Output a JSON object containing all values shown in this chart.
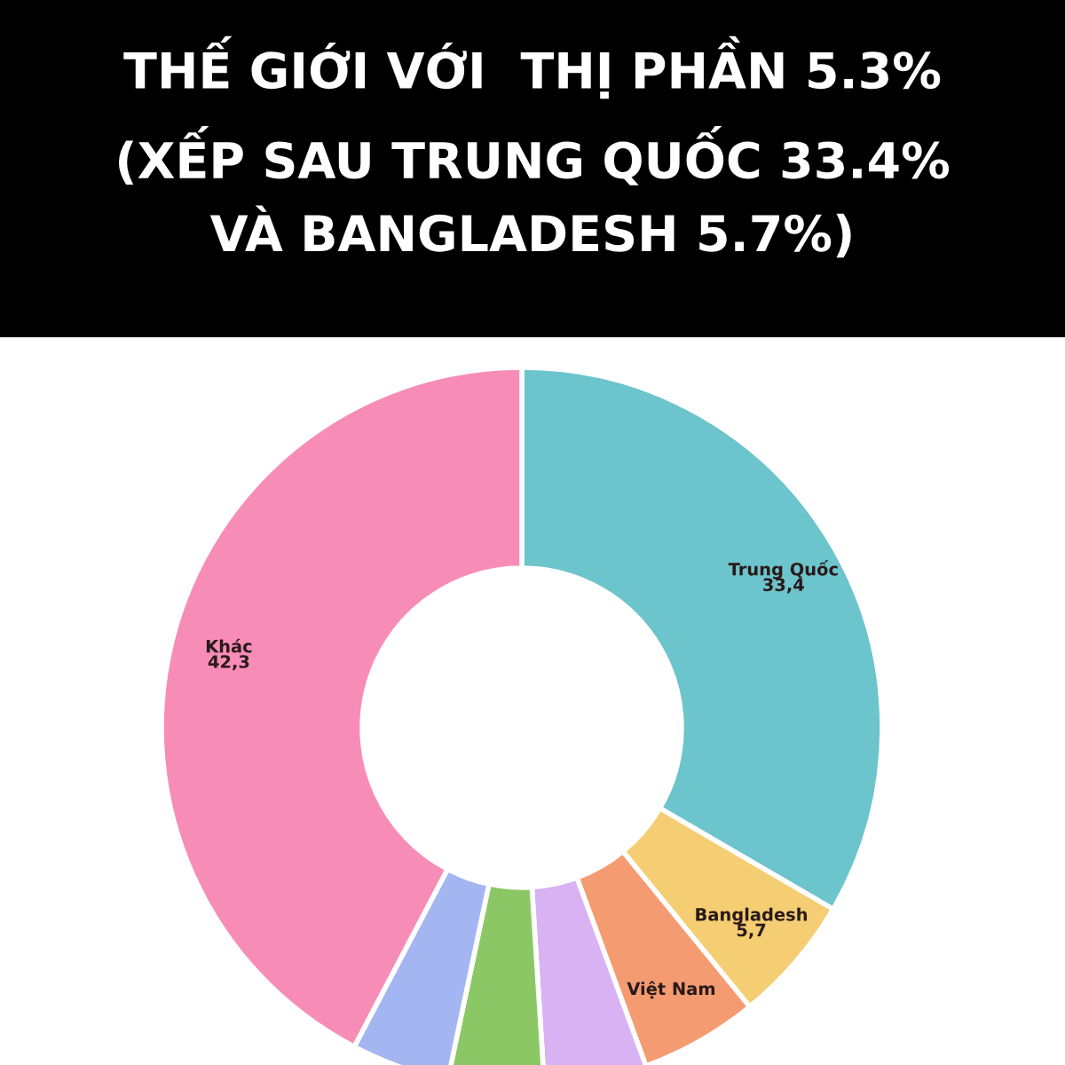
{
  "chart_data": {
    "type": "donut",
    "title": "THẾ GIỚI VỚI  THỊ PHẦN 5.3%",
    "subtitle": "(XẾP SAU TRUNG QUỐC 33.4%\nVÀ BANGLADESH 5.7%)",
    "categories": [
      "Trung Quốc",
      "Bangladesh",
      "Việt Nam",
      null,
      null,
      null,
      "Khác"
    ],
    "values": [
      33.4,
      5.7,
      5.3,
      4.6,
      4.3,
      4.4,
      42.3
    ],
    "value_labels": [
      "33,4",
      "5,7",
      null,
      null,
      null,
      null,
      "42,3"
    ],
    "colors": [
      "#6cc4cc",
      "#f5cd72",
      "#f49b72",
      "#d8b2f3",
      "#8cc766",
      "#a4b6f1",
      "#f78db6"
    ],
    "legend": false
  }
}
